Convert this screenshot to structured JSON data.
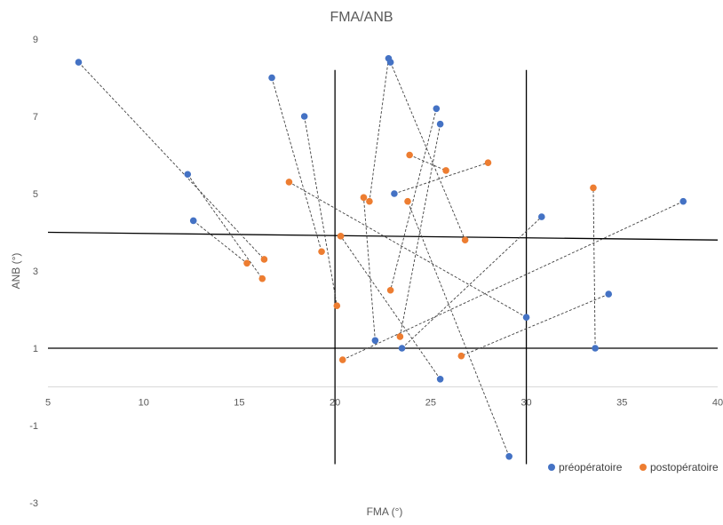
{
  "chart_data": {
    "type": "scatter",
    "title": "FMA/ANB",
    "xlabel": "FMA (°)",
    "ylabel": "ANB (°)",
    "xlim": [
      5,
      40
    ],
    "ylim": [
      -3,
      9
    ],
    "x_ticks": [
      "5",
      "10",
      "15",
      "20",
      "25",
      "30",
      "35",
      "40"
    ],
    "y_ticks": [
      "9",
      "7",
      "5",
      "3",
      "1",
      "-1",
      "-3"
    ],
    "x_tick_values": [
      5,
      10,
      15,
      20,
      25,
      30,
      35,
      40
    ],
    "y_tick_values": [
      9,
      7,
      5,
      3,
      1,
      -1,
      -3
    ],
    "grid": false,
    "legend_position": "bottom-right",
    "colors": {
      "preop": "#4472C4",
      "postop": "#ED7D31",
      "reference": "#000000",
      "connector": "#404040"
    },
    "series": [
      {
        "name": "préopératoire",
        "points": [
          [
            6.6,
            8.4
          ],
          [
            12.3,
            5.5
          ],
          [
            12.6,
            4.3
          ],
          [
            16.7,
            8.0
          ],
          [
            18.4,
            7.0
          ],
          [
            22.1,
            1.2
          ],
          [
            22.8,
            8.5
          ],
          [
            22.9,
            8.4
          ],
          [
            23.1,
            5.0
          ],
          [
            23.5,
            1.0
          ],
          [
            25.3,
            7.2
          ],
          [
            25.5,
            6.8
          ],
          [
            25.5,
            0.2
          ],
          [
            29.1,
            -1.8
          ],
          [
            30.0,
            1.8
          ],
          [
            30.8,
            4.4
          ],
          [
            33.6,
            1.0
          ],
          [
            34.3,
            2.4
          ],
          [
            38.2,
            4.8
          ]
        ]
      },
      {
        "name": "postopératoire",
        "points": [
          [
            15.4,
            3.2
          ],
          [
            16.2,
            2.8
          ],
          [
            16.3,
            3.3
          ],
          [
            17.6,
            5.3
          ],
          [
            19.3,
            3.5
          ],
          [
            20.1,
            2.1
          ],
          [
            20.3,
            3.9
          ],
          [
            20.4,
            0.7
          ],
          [
            21.5,
            4.9
          ],
          [
            21.8,
            4.8
          ],
          [
            22.9,
            2.5
          ],
          [
            23.4,
            1.3
          ],
          [
            23.8,
            4.8
          ],
          [
            23.9,
            6.0
          ],
          [
            25.8,
            5.6
          ],
          [
            26.6,
            0.8
          ],
          [
            26.8,
            3.8
          ],
          [
            28.0,
            5.8
          ],
          [
            33.5,
            5.15
          ]
        ]
      }
    ],
    "connections": [
      [
        [
          6.6,
          8.4
        ],
        [
          16.3,
          3.3
        ]
      ],
      [
        [
          12.3,
          5.5
        ],
        [
          16.2,
          2.8
        ]
      ],
      [
        [
          12.6,
          4.3
        ],
        [
          15.4,
          3.2
        ]
      ],
      [
        [
          16.7,
          8.0
        ],
        [
          19.3,
          3.5
        ]
      ],
      [
        [
          18.4,
          7.0
        ],
        [
          20.1,
          2.1
        ]
      ],
      [
        [
          22.8,
          8.5
        ],
        [
          21.8,
          4.8
        ]
      ],
      [
        [
          22.9,
          8.4
        ],
        [
          26.8,
          3.8
        ]
      ],
      [
        [
          25.3,
          7.2
        ],
        [
          22.9,
          2.5
        ]
      ],
      [
        [
          25.5,
          6.8
        ],
        [
          23.4,
          1.3
        ]
      ],
      [
        [
          23.1,
          5.0
        ],
        [
          28.0,
          5.8
        ]
      ],
      [
        [
          22.1,
          1.2
        ],
        [
          21.5,
          4.9
        ]
      ],
      [
        [
          23.5,
          1.0
        ],
        [
          30.8,
          4.4
        ]
      ],
      [
        [
          25.5,
          0.2
        ],
        [
          20.3,
          3.9
        ]
      ],
      [
        [
          29.1,
          -1.8
        ],
        [
          23.8,
          4.8
        ]
      ],
      [
        [
          30.0,
          1.8
        ],
        [
          17.6,
          5.3
        ]
      ],
      [
        [
          33.6,
          1.0
        ],
        [
          33.5,
          5.15
        ]
      ],
      [
        [
          34.3,
          2.4
        ],
        [
          26.6,
          0.8
        ]
      ],
      [
        [
          38.2,
          4.8
        ],
        [
          20.4,
          0.7
        ]
      ],
      [
        [
          23.9,
          6.0
        ],
        [
          25.8,
          5.6
        ]
      ]
    ],
    "reference_lines": [
      {
        "x1": 5,
        "y1": 4.0,
        "x2": 40,
        "y2": 3.8
      },
      {
        "x1": 5,
        "y1": 1.0,
        "x2": 40,
        "y2": 1.0
      },
      {
        "x1": 20,
        "y1": 8.2,
        "x2": 20,
        "y2": -2.0
      },
      {
        "x1": 30,
        "y1": 8.2,
        "x2": 30,
        "y2": -2.0
      }
    ]
  }
}
